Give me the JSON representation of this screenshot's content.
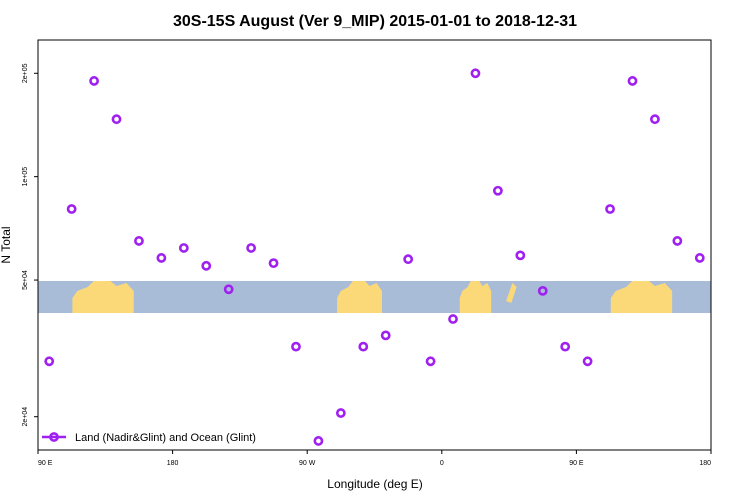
{
  "chart_data": {
    "type": "scatter",
    "title": "30S-15S August (Ver 9_MIP)   2015-01-01 to 2018-12-31",
    "xlabel": "Longitude (deg E)",
    "ylabel": "N Total",
    "y_scale": "log",
    "xlim": [
      90,
      540
    ],
    "ylim": [
      16000,
      250000
    ],
    "x_ticks": [
      {
        "value": 90,
        "label": "90 E"
      },
      {
        "value": 180,
        "label": "180"
      },
      {
        "value": 270,
        "label": "90 W"
      },
      {
        "value": 360,
        "label": "0"
      },
      {
        "value": 450,
        "label": "90 E"
      },
      {
        "value": 540,
        "label": "180"
      }
    ],
    "y_ticks": [
      {
        "value": 20000,
        "label": "2e+04"
      },
      {
        "value": 50000,
        "label": "5e+04"
      },
      {
        "value": 100000,
        "label": "1e+05"
      },
      {
        "value": 200000,
        "label": "2e+05"
      }
    ],
    "series": [
      {
        "name": "Land (Nadir&Glint) and Ocean (Glint)",
        "color": "#a020f0",
        "points": [
          {
            "x": 97.5,
            "y": 29000
          },
          {
            "x": 112.5,
            "y": 80500
          },
          {
            "x": 127.5,
            "y": 190000
          },
          {
            "x": 142.5,
            "y": 147000
          },
          {
            "x": 157.5,
            "y": 65000
          },
          {
            "x": 172.5,
            "y": 58000
          },
          {
            "x": 187.5,
            "y": 62000
          },
          {
            "x": 202.5,
            "y": 55000
          },
          {
            "x": 217.5,
            "y": 47000
          },
          {
            "x": 232.5,
            "y": 62000
          },
          {
            "x": 247.5,
            "y": 56000
          },
          {
            "x": 262.5,
            "y": 32000
          },
          {
            "x": 277.5,
            "y": 17000
          },
          {
            "x": 292.5,
            "y": 20500
          },
          {
            "x": 307.5,
            "y": 32000
          },
          {
            "x": 322.5,
            "y": 34500
          },
          {
            "x": 337.5,
            "y": 57500
          },
          {
            "x": 352.5,
            "y": 29000
          },
          {
            "x": 367.5,
            "y": 38500
          },
          {
            "x": 382.5,
            "y": 200000
          },
          {
            "x": 397.5,
            "y": 91000
          },
          {
            "x": 412.5,
            "y": 59000
          },
          {
            "x": 427.5,
            "y": 46500
          },
          {
            "x": 442.5,
            "y": 32000
          },
          {
            "x": 457.5,
            "y": 29000
          },
          {
            "x": 472.5,
            "y": 80500
          },
          {
            "x": 487.5,
            "y": 190000
          },
          {
            "x": 502.5,
            "y": 147000
          },
          {
            "x": 517.5,
            "y": 65000
          },
          {
            "x": 532.5,
            "y": 58000
          }
        ]
      }
    ],
    "legend": {
      "position": "bottom-left"
    },
    "grid": false,
    "background_map": {
      "lat_range": [
        -30,
        -15
      ],
      "ocean_color": "#a8bcd8",
      "land_color": "#fcd978",
      "land_segments": [
        {
          "region": "Australia",
          "lon_start": 113,
          "lon_end": 154
        },
        {
          "region": "South America",
          "lon_start": 290,
          "lon_end": 320
        },
        {
          "region": "Southern Africa",
          "lon_start": 372,
          "lon_end": 393
        },
        {
          "region": "Madagascar",
          "lon_start": 403,
          "lon_end": 410
        },
        {
          "region": "Australia",
          "lon_start": 473,
          "lon_end": 514
        }
      ]
    }
  }
}
